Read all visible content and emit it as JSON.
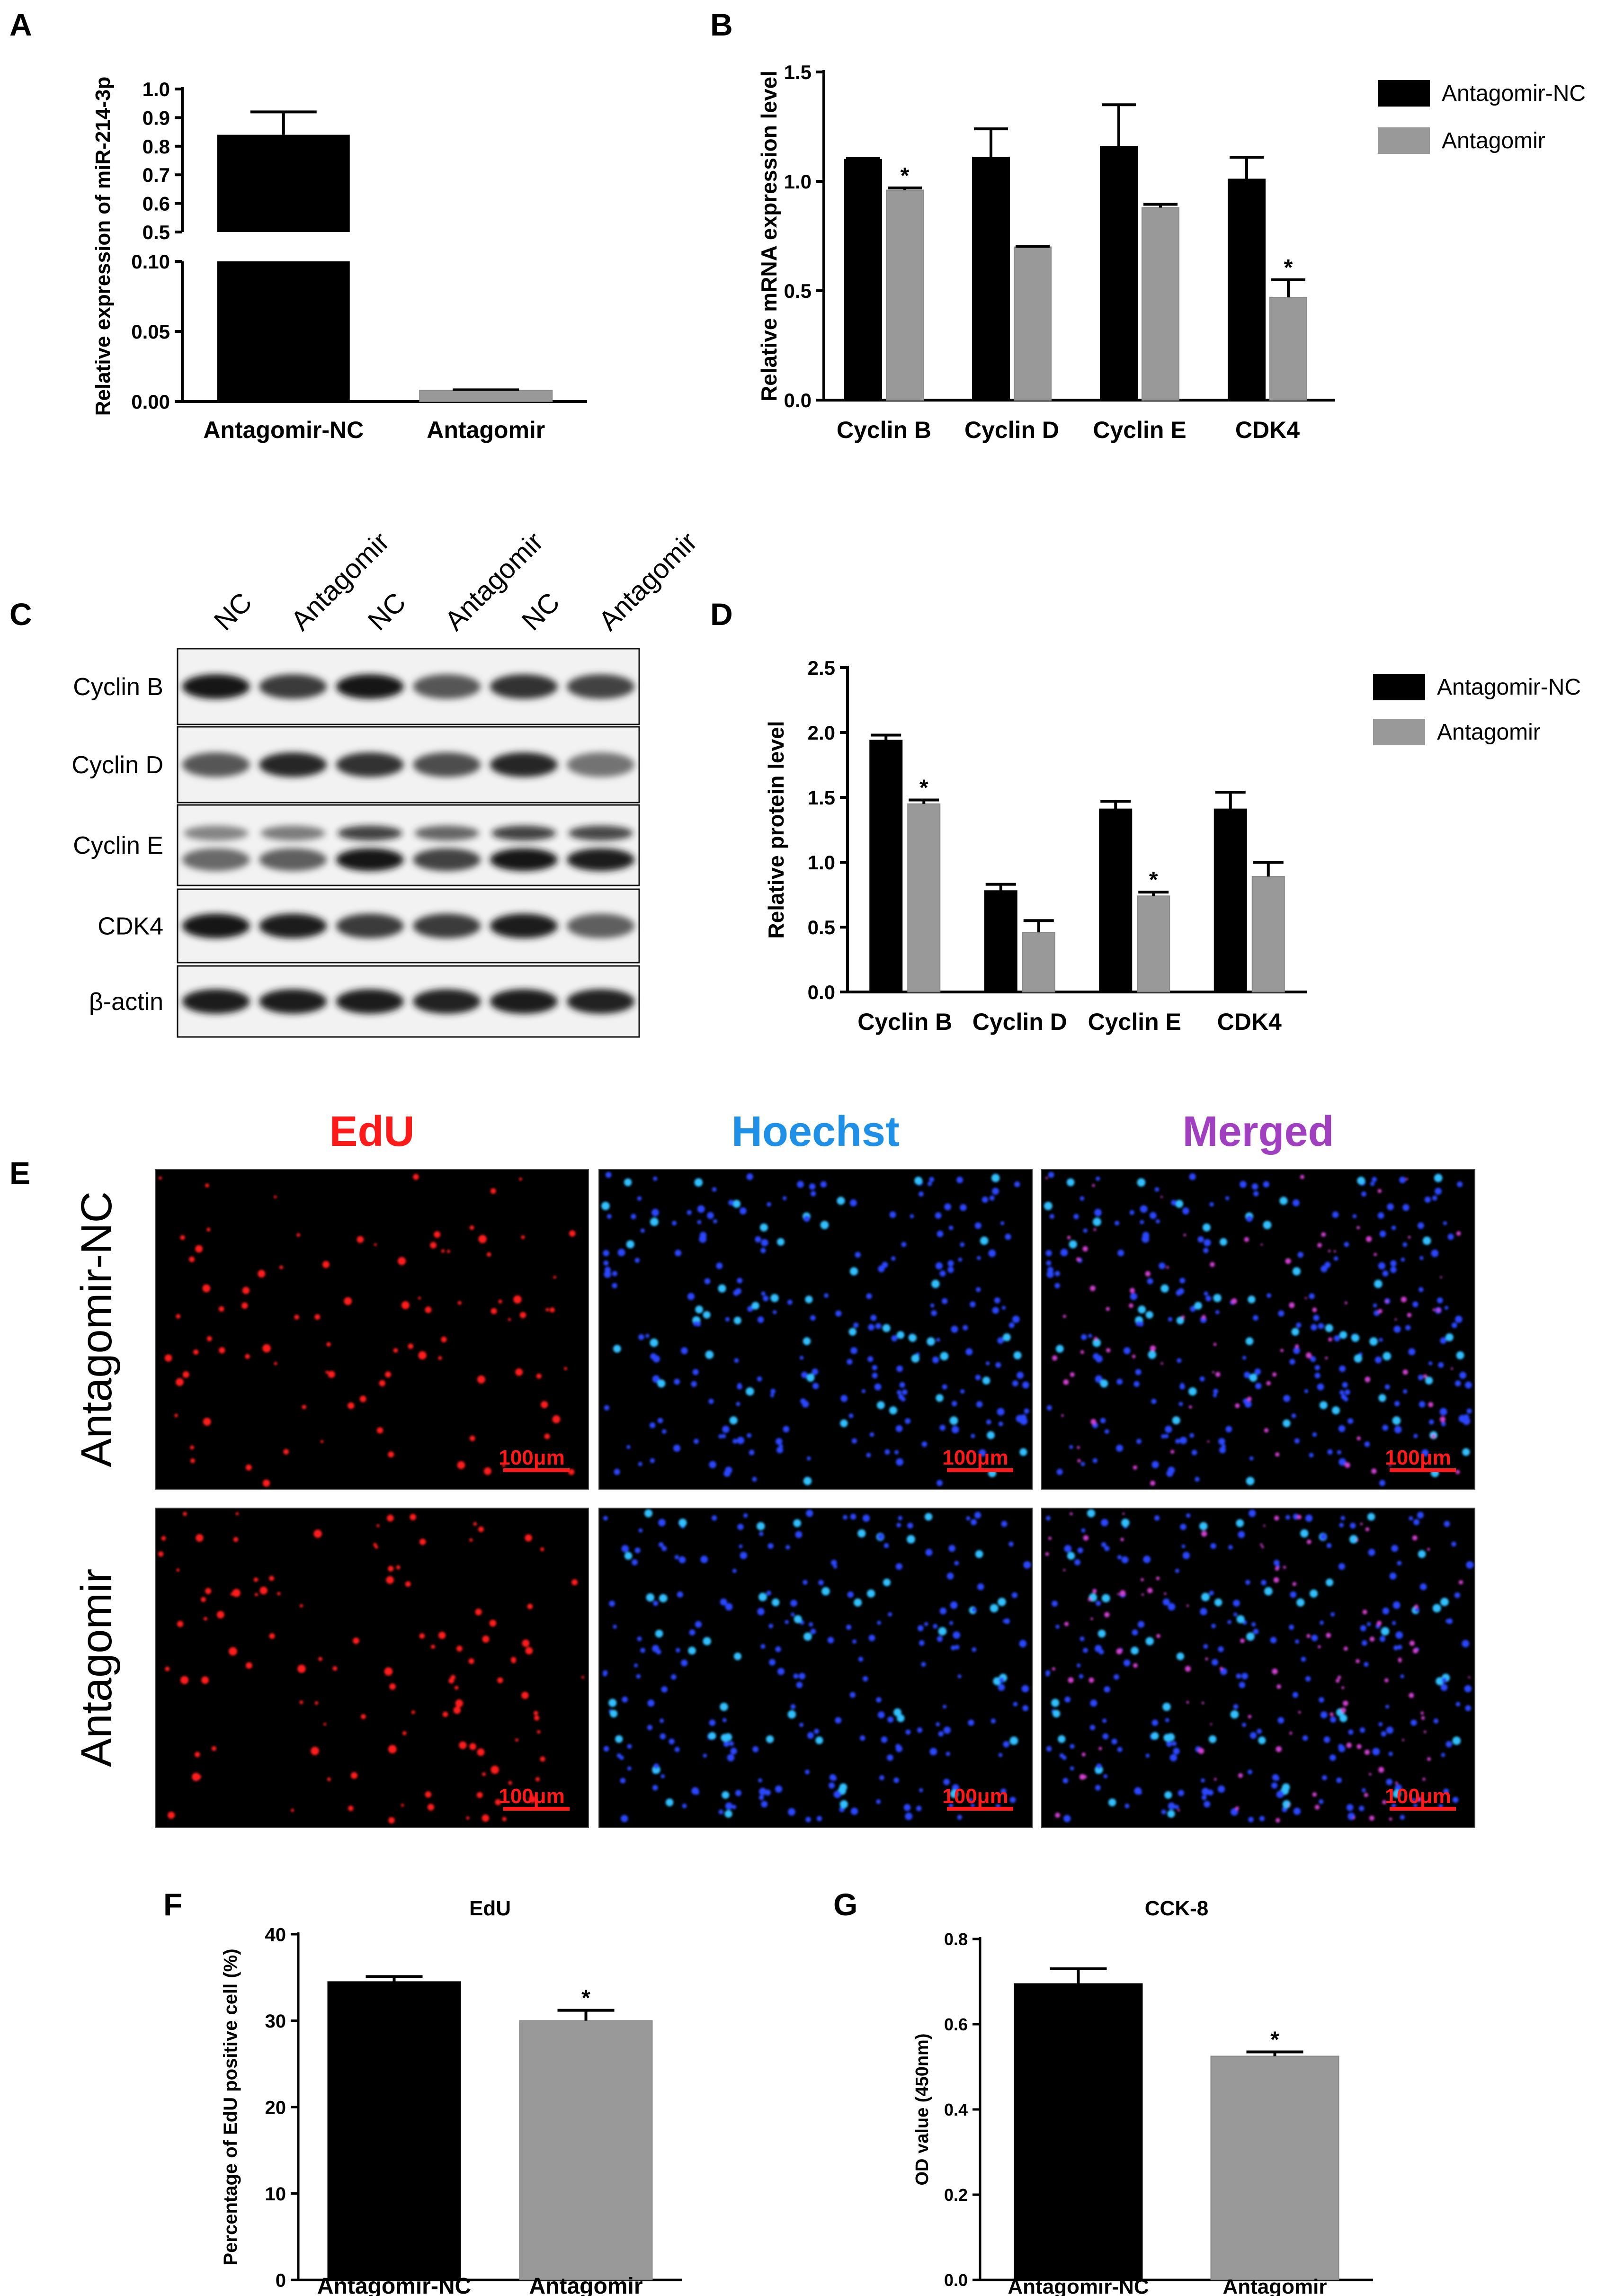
{
  "panel_letters": {
    "A": "A",
    "B": "B",
    "C": "C",
    "D": "D",
    "E": "E",
    "F": "F",
    "G": "G"
  },
  "colors": {
    "nc": "#000000",
    "antagomir": "#999999",
    "edu": "#ff1a1a",
    "hoechst": "#1e90e8",
    "merged": "#a040c0",
    "scale_bar": "#ff1a1a"
  },
  "chart_data": [
    {
      "id": "A",
      "type": "bar",
      "categories": [
        "Antagomir-NC",
        "Antagomir"
      ],
      "values": [
        0.84,
        0.008
      ],
      "errors": [
        0.08,
        0.0005
      ],
      "ylabel": "Relative expression of miR-214-3p",
      "yaxis_break": true,
      "ylim_lower": [
        0,
        0.1
      ],
      "ylim_upper": [
        0.5,
        1.0
      ],
      "yticks_lower": [
        "0.00",
        "0.05",
        "0.10"
      ],
      "yticks_upper": [
        "0.5",
        "0.6",
        "0.7",
        "0.8",
        "0.9",
        "1.0"
      ],
      "bar_colors": [
        "#000000",
        "#999999"
      ]
    },
    {
      "id": "B",
      "type": "bar",
      "categories": [
        "Cyclin B",
        "Cyclin D",
        "Cyclin E",
        "CDK4"
      ],
      "series": [
        {
          "name": "Antagomir-NC",
          "values": [
            1.1,
            1.11,
            1.16,
            1.01
          ],
          "errors": [
            0.005,
            0.13,
            0.19,
            0.1
          ]
        },
        {
          "name": "Antagomir",
          "values": [
            0.96,
            0.7,
            0.88,
            0.47
          ],
          "errors": [
            0.01,
            0.003,
            0.015,
            0.08
          ]
        }
      ],
      "significance": [
        [
          "",
          "*"
        ],
        [
          "",
          ""
        ],
        [
          "",
          ""
        ],
        [
          "",
          "*"
        ]
      ],
      "ylabel": "Relative mRNA expression level",
      "ylim": [
        0,
        1.5
      ],
      "yticks": [
        "0.0",
        "0.5",
        "1.0",
        "1.5"
      ],
      "legend": "top-right"
    },
    {
      "id": "D",
      "type": "bar",
      "categories": [
        "Cyclin B",
        "Cyclin D",
        "Cyclin E",
        "CDK4"
      ],
      "series": [
        {
          "name": "Antagomir-NC",
          "values": [
            1.94,
            0.78,
            1.41,
            1.41
          ],
          "errors": [
            0.04,
            0.05,
            0.06,
            0.13
          ]
        },
        {
          "name": "Antagomir",
          "values": [
            1.45,
            0.46,
            0.74,
            0.89
          ],
          "errors": [
            0.03,
            0.09,
            0.03,
            0.11
          ]
        }
      ],
      "significance": [
        [
          "",
          "*"
        ],
        [
          "",
          ""
        ],
        [
          "",
          "*"
        ],
        [
          "",
          ""
        ]
      ],
      "ylabel": "Relative protein level",
      "ylim": [
        0,
        2.5
      ],
      "yticks": [
        "0.0",
        "0.5",
        "1.0",
        "1.5",
        "2.0",
        "2.5"
      ],
      "legend": "top-right"
    },
    {
      "id": "F",
      "type": "bar",
      "title": "EdU",
      "categories": [
        "Antagomir-NC",
        "Antagomir"
      ],
      "values": [
        34.5,
        30
      ],
      "errors": [
        0.6,
        1.2
      ],
      "significance": [
        "",
        "*"
      ],
      "ylabel": "Percentage of EdU positive cell (%)",
      "ylim": [
        0,
        40
      ],
      "yticks": [
        "0",
        "10",
        "20",
        "30",
        "40"
      ],
      "bar_colors": [
        "#000000",
        "#999999"
      ]
    },
    {
      "id": "G",
      "type": "bar",
      "title": "CCK-8",
      "categories": [
        "Antagomir-NC",
        "Antagomir"
      ],
      "values": [
        0.695,
        0.525
      ],
      "errors": [
        0.035,
        0.01
      ],
      "significance": [
        "",
        "*"
      ],
      "ylabel": "OD value (450nm)",
      "ylim": [
        0,
        0.8
      ],
      "yticks": [
        "0.0",
        "0.2",
        "0.4",
        "0.6",
        "0.8"
      ],
      "bar_colors": [
        "#000000",
        "#999999"
      ]
    }
  ],
  "western_blot": {
    "lanes": [
      "NC",
      "Antagomir",
      "NC",
      "Antagomir",
      "NC",
      "Antagomir"
    ],
    "rows": [
      {
        "label": "Cyclin B",
        "intensity": [
          0.95,
          0.75,
          0.95,
          0.6,
          0.8,
          0.7
        ],
        "bands": 1
      },
      {
        "label": "Cyclin D",
        "intensity": [
          0.6,
          0.85,
          0.8,
          0.65,
          0.85,
          0.45
        ],
        "bands": 1
      },
      {
        "label": "Cyclin E",
        "intensity": [
          0.5,
          0.55,
          0.95,
          0.7,
          0.95,
          0.9
        ],
        "bands": 2
      },
      {
        "label": "CDK4",
        "intensity": [
          0.95,
          0.9,
          0.75,
          0.75,
          0.9,
          0.55
        ],
        "bands": 1
      },
      {
        "label": "β-actin",
        "intensity": [
          0.9,
          0.9,
          0.9,
          0.88,
          0.9,
          0.88
        ],
        "bands": 1
      }
    ]
  },
  "microscopy": {
    "columns": [
      "EdU",
      "Hoechst",
      "Merged"
    ],
    "rows": [
      "Antagomir-NC",
      "Antagomir"
    ],
    "scale_bar": "100μm"
  }
}
